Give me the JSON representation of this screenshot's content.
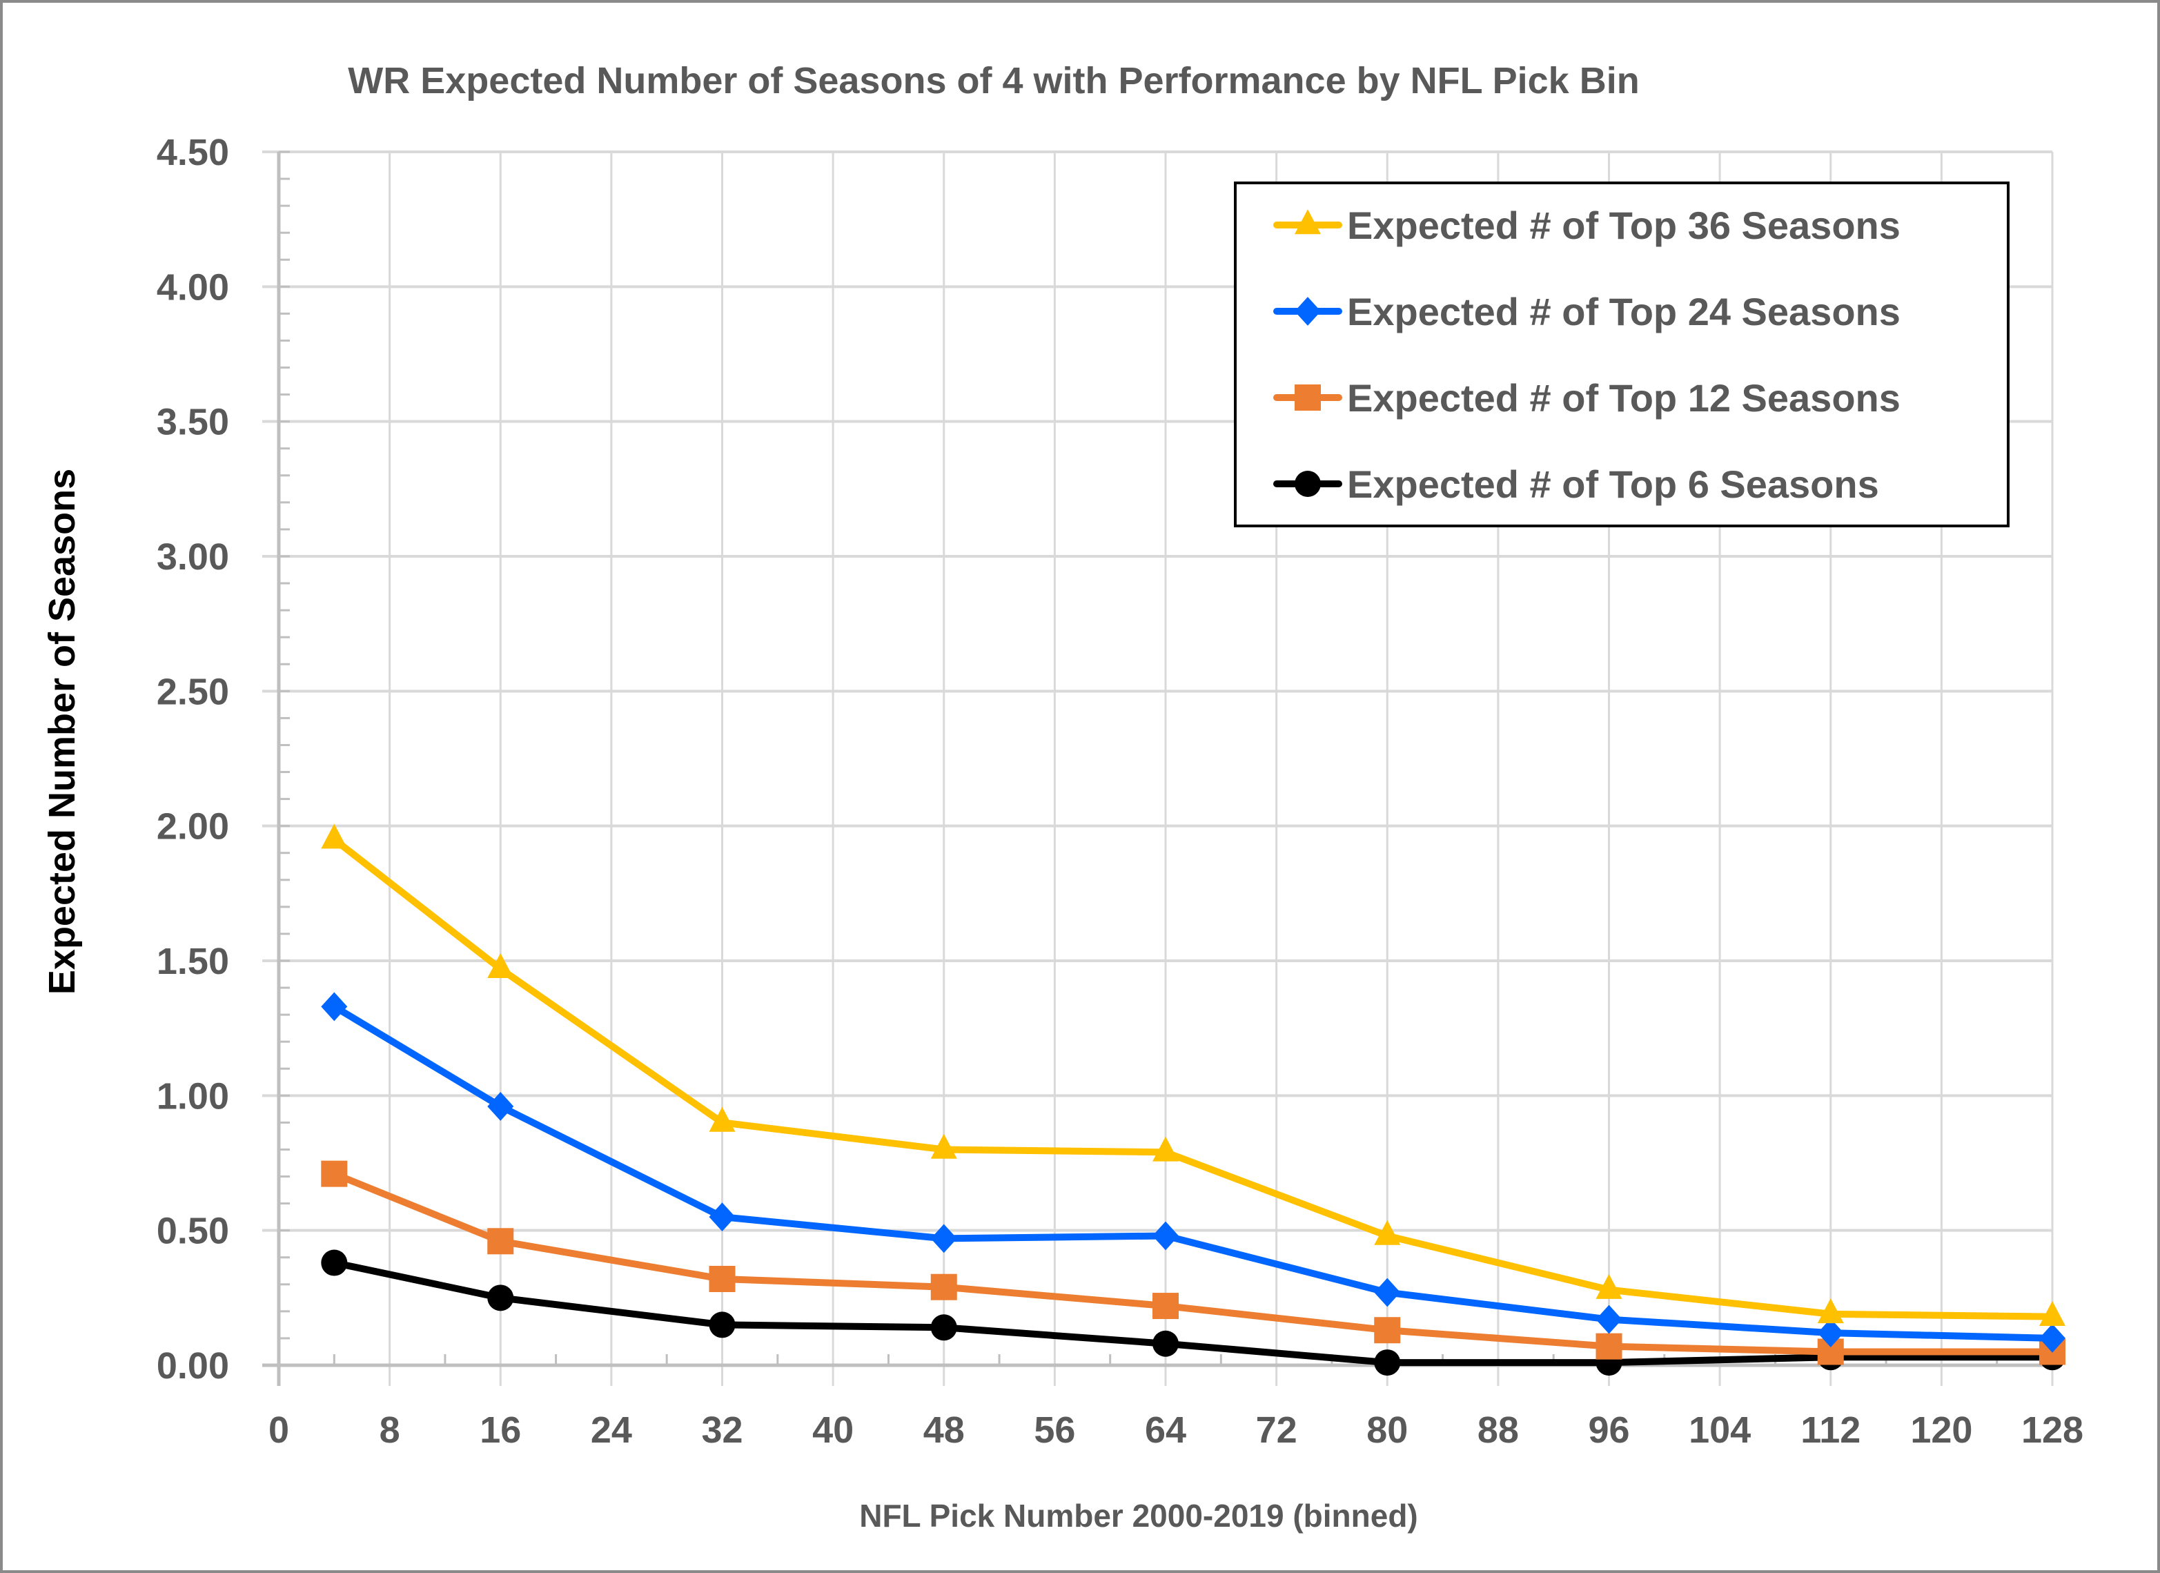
{
  "chart_data": {
    "type": "line",
    "title": "WR Expected Number of Seasons of 4 with Performance by NFL Pick Bin",
    "xlabel": "NFL Pick Number 2000-2019 (binned)",
    "ylabel": "Expected Number of Seasons",
    "xlim": [
      0,
      128
    ],
    "ylim": [
      0,
      4.5
    ],
    "x_ticks": [
      0,
      8,
      16,
      24,
      32,
      40,
      48,
      56,
      64,
      72,
      80,
      88,
      96,
      104,
      112,
      120,
      128
    ],
    "x_tick_labels": [
      "0",
      "8",
      "16",
      "24",
      "32",
      "40",
      "48",
      "56",
      "64",
      "72",
      "80",
      "88",
      "96",
      "104",
      "112",
      "120",
      "128"
    ],
    "y_ticks": [
      0,
      0.5,
      1.0,
      1.5,
      2.0,
      2.5,
      3.0,
      3.5,
      4.0,
      4.5
    ],
    "y_tick_labels": [
      "0.00",
      "0.50",
      "1.00",
      "1.50",
      "2.00",
      "2.50",
      "3.00",
      "3.50",
      "4.00",
      "4.50"
    ],
    "y_minor_step": 0.1,
    "x_minor_step": 4,
    "grid": true,
    "legend_position": "top-right",
    "x": [
      4,
      16,
      32,
      48,
      64,
      80,
      96,
      112,
      128
    ],
    "series": [
      {
        "name": "Expected # of Top 36 Seasons",
        "color": "#FFC000",
        "marker": "triangle",
        "values": [
          1.95,
          1.47,
          0.9,
          0.8,
          0.79,
          0.48,
          0.28,
          0.19,
          0.18
        ]
      },
      {
        "name": "Expected # of Top 24 Seasons",
        "color": "#0066FF",
        "marker": "diamond",
        "values": [
          1.33,
          0.96,
          0.55,
          0.47,
          0.48,
          0.27,
          0.17,
          0.12,
          0.1
        ]
      },
      {
        "name": "Expected # of Top 12 Seasons",
        "color": "#ED7D31",
        "marker": "square",
        "values": [
          0.71,
          0.46,
          0.32,
          0.29,
          0.22,
          0.13,
          0.07,
          0.05,
          0.05
        ]
      },
      {
        "name": "Expected # of Top 6 Seasons",
        "color": "#000000",
        "marker": "circle",
        "values": [
          0.38,
          0.25,
          0.15,
          0.14,
          0.08,
          0.01,
          0.01,
          0.03,
          0.03
        ]
      }
    ]
  }
}
